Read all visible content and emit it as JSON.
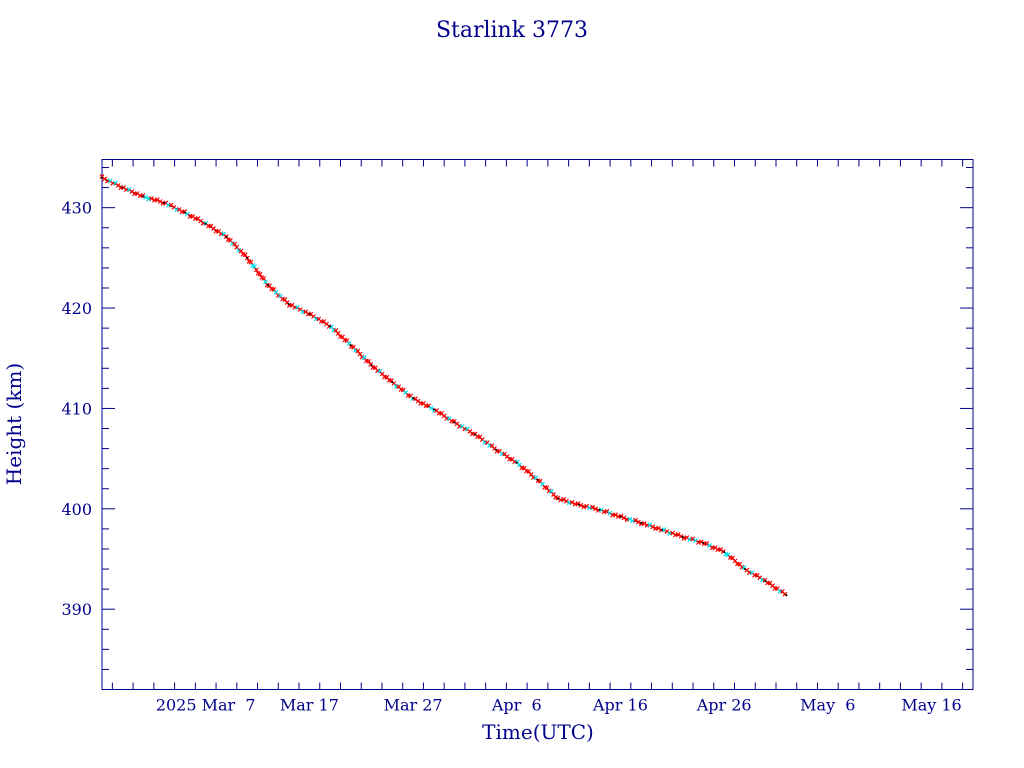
{
  "chart_data": {
    "type": "line",
    "title": "Starlink 3773",
    "xlabel": "Time(UTC)",
    "ylabel": "Height (km)",
    "x_tick_labels": [
      "2025 Mar  7",
      "Mar 17",
      "Mar 27",
      "Apr  6",
      "Apr 16",
      "Apr 26",
      "May  6",
      "May 16"
    ],
    "x_tick_dates": [
      "2025-03-07",
      "2025-03-17",
      "2025-03-27",
      "2025-04-06",
      "2025-04-16",
      "2025-04-26",
      "2025-05-06",
      "2025-05-16"
    ],
    "xlim": [
      "2025-02-25",
      "2025-05-20"
    ],
    "y_ticks": [
      390,
      400,
      410,
      420,
      430
    ],
    "ylim": [
      382,
      434.8
    ],
    "grid": false,
    "colors": {
      "frame": "#00008b",
      "line": "#000000",
      "marker": "#ff0000",
      "marker_alt": "#00e5ee"
    },
    "series": [
      {
        "x": [
          "2025-02-25",
          "2025-02-27",
          "2025-03-01",
          "2025-03-03",
          "2025-03-05",
          "2025-03-07",
          "2025-03-09",
          "2025-03-11",
          "2025-03-13",
          "2025-03-15",
          "2025-03-17",
          "2025-03-19",
          "2025-03-21",
          "2025-03-23",
          "2025-03-25",
          "2025-03-27",
          "2025-03-29",
          "2025-03-31",
          "2025-04-02",
          "2025-04-04",
          "2025-04-06",
          "2025-04-08",
          "2025-04-10",
          "2025-04-12",
          "2025-04-14",
          "2025-04-16",
          "2025-04-18",
          "2025-04-20",
          "2025-04-22",
          "2025-04-24",
          "2025-04-26",
          "2025-04-28",
          "2025-04-30",
          "2025-05-02"
        ],
        "y": [
          433.0,
          432.0,
          431.1,
          430.5,
          429.5,
          428.4,
          427.1,
          425.0,
          422.3,
          420.4,
          419.4,
          418.2,
          416.3,
          414.3,
          412.6,
          411.0,
          409.9,
          408.6,
          407.4,
          405.9,
          404.6,
          402.9,
          401.0,
          400.4,
          399.9,
          399.2,
          398.6,
          397.9,
          397.2,
          396.6,
          395.7,
          394.0,
          392.8,
          391.4
        ]
      }
    ]
  }
}
